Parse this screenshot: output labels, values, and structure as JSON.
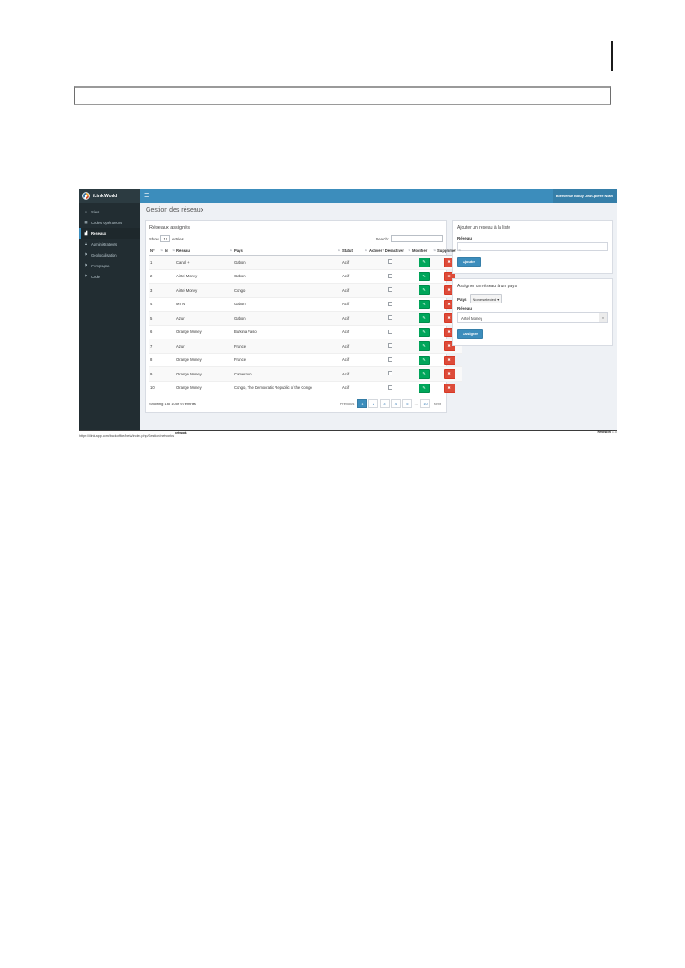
{
  "page_chrome": {
    "url": "https://ilink-app.com/backoffice/beta/index.php/Gestion/networks",
    "url_sup": "network",
    "revision_label": "Revision",
    "revision_value": "1.0"
  },
  "header": {
    "brand": "iLink World",
    "menu_icon": "☰",
    "welcome": "Bienvenue Bouty Jean-pierre Noah"
  },
  "sidebar": {
    "items": [
      {
        "glyph": "⌂",
        "icon": "home-icon",
        "label": "Sites",
        "active": false
      },
      {
        "glyph": "▦",
        "icon": "table-icon",
        "label": "Codes Opérateurs",
        "active": false
      },
      {
        "glyph": "▟",
        "icon": "signal-icon",
        "label": "Réseaux",
        "active": true
      },
      {
        "glyph": "♟",
        "icon": "user-icon",
        "label": "Administrateurs",
        "active": false
      },
      {
        "glyph": "⚑",
        "icon": "map-marker-icon",
        "label": "Géolocalisation",
        "active": false
      },
      {
        "glyph": "⚑",
        "icon": "flag-icon",
        "label": "Campagne",
        "active": false
      },
      {
        "glyph": "⚑",
        "icon": "code-marker-icon",
        "label": "Code",
        "active": false
      }
    ]
  },
  "main": {
    "title": "Gestion des réseaux",
    "table": {
      "panel_title": "Réseaux assignés",
      "show_label": "Show",
      "page_size": "10",
      "entries_label": "entries",
      "search_label": "Search:",
      "sort_glyph": "⇅",
      "edit_glyph": "✎",
      "delete_glyph": "✖",
      "columns": [
        "N°",
        "Id",
        "Réseau",
        "Pays",
        "Statut",
        "Activer / Désactiver",
        "Modifier",
        "Supprimer"
      ],
      "rows": [
        {
          "n": "1",
          "id": "",
          "reseau": "Canal +",
          "pays": "Gabon",
          "statut": "Actif"
        },
        {
          "n": "2",
          "id": "",
          "reseau": "Airtel Money",
          "pays": "Gabon",
          "statut": "Actif"
        },
        {
          "n": "3",
          "id": "",
          "reseau": "Airtel Money",
          "pays": "Congo",
          "statut": "Actif"
        },
        {
          "n": "4",
          "id": "",
          "reseau": "MTN",
          "pays": "Gabon",
          "statut": "Actif"
        },
        {
          "n": "5",
          "id": "",
          "reseau": "Azur",
          "pays": "Gabon",
          "statut": "Actif"
        },
        {
          "n": "6",
          "id": "",
          "reseau": "Orange Money",
          "pays": "Burkina Faso",
          "statut": "Actif"
        },
        {
          "n": "7",
          "id": "",
          "reseau": "Azur",
          "pays": "France",
          "statut": "Actif"
        },
        {
          "n": "8",
          "id": "",
          "reseau": "Orange Money",
          "pays": "France",
          "statut": "Actif"
        },
        {
          "n": "9",
          "id": "",
          "reseau": "Orange Money",
          "pays": "Cameroun",
          "statut": "Actif"
        },
        {
          "n": "10",
          "id": "",
          "reseau": "Orange Money",
          "pays": "Congo, The Democratic Republic of the Congo",
          "statut": "Actif"
        }
      ],
      "footer_text": "Showing 1 to 10 of 97 entries"
    },
    "pagination": {
      "prev": "Previous",
      "next": "Next",
      "pages": [
        {
          "label": "1",
          "active": true
        },
        {
          "label": "2",
          "active": false
        },
        {
          "label": "3",
          "active": false
        },
        {
          "label": "4",
          "active": false
        },
        {
          "label": "5",
          "active": false
        },
        {
          "label": "…",
          "active": false,
          "ellipsis": true
        },
        {
          "label": "10",
          "active": false
        }
      ]
    },
    "add_panel": {
      "title": "Ajouter un réseau à la liste",
      "field_label": "Réseau",
      "input_value": "",
      "button": "Ajouter"
    },
    "assign_panel": {
      "title": "Assigner un réseau à un pays",
      "pays_label": "Pays",
      "pays_value": "None selected",
      "caret": "▾",
      "reseau_label": "Réseau",
      "reseau_value": "Airtel Money",
      "addon_glyph": "▾",
      "button": "Assigner"
    }
  }
}
